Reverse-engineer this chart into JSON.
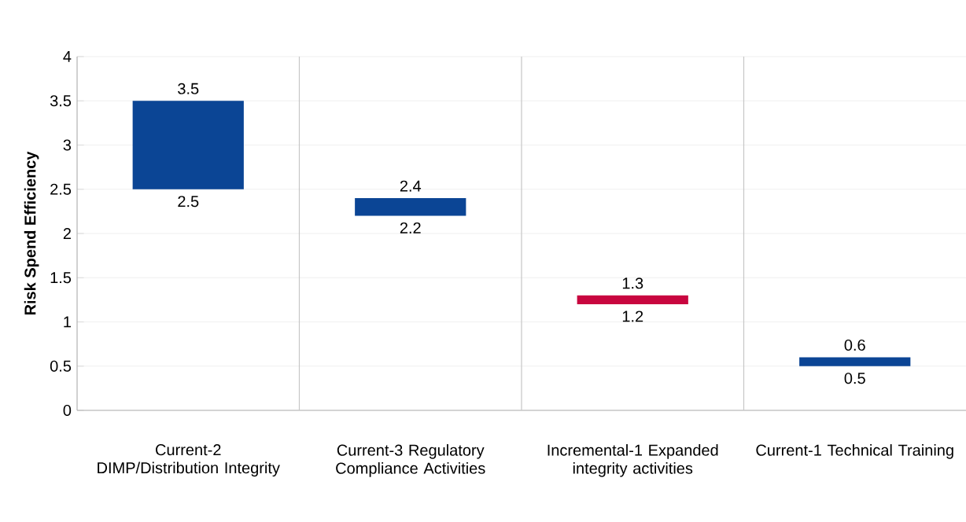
{
  "chart_data": {
    "type": "bar",
    "ylabel": "Risk Spend Efficiency",
    "categories": [
      "Current-2 DIMP/Distribution Integrity",
      "Current-3 Regulatory Compliance Activities",
      "Incremental-1 Expanded integrity activities",
      "Current-1 Technical Training"
    ],
    "base": [
      2.5,
      2.2,
      1.2,
      0.5
    ],
    "values": [
      1.0,
      0.2,
      0.1,
      0.1
    ],
    "colors": [
      "#0b4595",
      "#0b4595",
      "#c8063f",
      "#0b4595"
    ],
    "ylim": [
      0,
      4
    ],
    "yticks": [
      0,
      0.5,
      1,
      1.5,
      2,
      2.5,
      3,
      3.5,
      4
    ],
    "grid": "y",
    "annotations": [
      {
        "text": "3.5",
        "x": "Current-2 DIMP/Distribution Integrity",
        "y": 3.5
      },
      {
        "text": "2.5",
        "x": "Current-2 DIMP/Distribution Integrity",
        "y": 2.5
      },
      {
        "text": "2.4",
        "x": "Current-3 Regulatory Compliance Activities",
        "y": 2.4
      },
      {
        "text": "2.2",
        "x": "Current-3 Regulatory Compliance Activities",
        "y": 2.2
      },
      {
        "text": "1.3",
        "x": "Incremental-1 Expanded integrity activities",
        "y": 1.3
      },
      {
        "text": "1.2",
        "x": "Incremental-1 Expanded integrity activities",
        "y": 1.2
      },
      {
        "text": "0.6",
        "x": "Current-1 Technical Training",
        "y": 0.6
      },
      {
        "text": "0.5",
        "x": "Current-1 Technical Training",
        "y": 0.5
      }
    ]
  }
}
